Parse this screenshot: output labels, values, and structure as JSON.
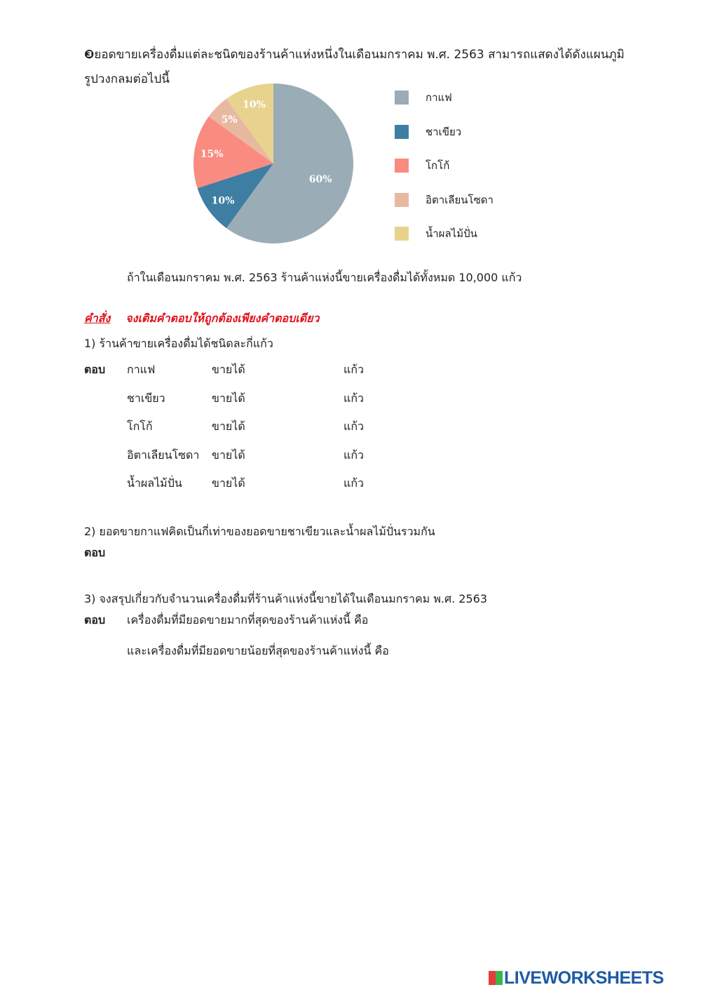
{
  "intro": {
    "bullet": "❸",
    "line1": "ยอดขายเครื่องดื่มแต่ละชนิดของร้านค้าแห่งหนึ่งในเดือนมกราคม  พ.ศ.  2563 สามารถแสดงได้ดังแผนภูมิ",
    "line2": "รูปวงกลมต่อไปนี้"
  },
  "chart_data": {
    "type": "pie",
    "start": "top",
    "direction": "clockwise",
    "slices": [
      {
        "name": "กาแฟ",
        "value": 60,
        "label": "60%",
        "color": "#9aacb5"
      },
      {
        "name": "ชาเขียว",
        "value": 10,
        "label": "10%",
        "color": "#3f7ea3"
      },
      {
        "name": "โกโก้",
        "value": 15,
        "label": "15%",
        "color": "#f98b80"
      },
      {
        "name": "อิตาเลียนโซดา",
        "value": 5,
        "label": "5%",
        "color": "#e8b9a0"
      },
      {
        "name": "น้ำผลไม้ปั่น",
        "value": 10,
        "label": "10%",
        "color": "#e8d38e"
      }
    ],
    "legend_position": "right"
  },
  "given": "ถ้าในเดือนมกราคม  พ.ศ.  2563  ร้านค้าแห่งนี้ขายเครื่องดื่มได้ทั้งหมด  10,000  แก้ว",
  "instruction": {
    "label": "คำสั่ง",
    "text": "จงเติมคำตอบให้ถูกต้องเพียงคำตอบเดียว"
  },
  "q1": {
    "question": "1) ร้านค้าขายเครื่องดื่มได้ชนิดละกี่แก้ว",
    "answer_label": "ตอบ",
    "sold": "ขายได้",
    "unit": "แก้ว",
    "items": [
      "กาแฟ",
      "ชาเขียว",
      "โกโก้",
      "อิตาเลียนโซดา",
      "น้ำผลไม้ปั่น"
    ]
  },
  "q2": {
    "question": "2) ยอดขายกาแฟคิดเป็นกี่เท่าของยอดขายชาเขียวและน้ำผลไม้ปั่นรวมกัน",
    "answer_label": "ตอบ"
  },
  "q3": {
    "question": "3) จงสรุปเกี่ยวกับจำนวนเครื่องดื่มที่ร้านค้าแห่งนี้ขายได้ในเดือนมกราคม  พ.ศ.  2563",
    "answer_label": "ตอบ",
    "line1": "เครื่องดื่มที่มียอดขายมากที่สุดของร้านค้าแห่งนี้   คือ",
    "line2": "และเครื่องดื่มที่มียอดขายน้อยที่สุดของร้านค้าแห่งนี้  คือ"
  },
  "logo": {
    "text": "LIVEWORKSHEETS"
  }
}
